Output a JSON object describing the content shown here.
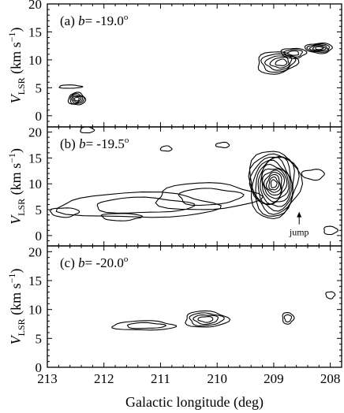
{
  "chart_data": {
    "type": "contour",
    "xlabel": "Galactic longitude (deg)",
    "x_ticks": [
      213,
      212,
      211,
      210,
      209,
      208
    ],
    "xlim": [
      213,
      207.8
    ],
    "ylabel_main": "V",
    "ylabel_sub": "LSR",
    "ylabel_unit_pre": " (km s",
    "ylabel_unit_exp": "−1",
    "ylabel_unit_post": ")",
    "panels": [
      {
        "letter": "(a) ",
        "b_symbol": "b",
        "b_value": "= -19.0",
        "b_degree": "o",
        "ylim": [
          -2,
          20
        ],
        "y_ticks": [
          0,
          5,
          10,
          15,
          20
        ],
        "clumps": [
          {
            "l": 212.48,
            "v": 3.0,
            "dl": 0.15,
            "dv": 1.1,
            "levels": 5,
            "tilt": 0
          },
          {
            "l": 212.6,
            "v": 5.2,
            "dl": 0.2,
            "dv": 0.3,
            "levels": 1,
            "tilt": 0
          },
          {
            "l": 208.95,
            "v": 9.5,
            "dl": 0.35,
            "dv": 2.0,
            "levels": 5,
            "tilt": 0.25
          },
          {
            "l": 208.65,
            "v": 11.2,
            "dl": 0.22,
            "dv": 0.9,
            "levels": 3,
            "tilt": 0
          },
          {
            "l": 208.2,
            "v": 12.1,
            "dl": 0.24,
            "dv": 0.9,
            "levels": 5,
            "tilt": 0
          }
        ]
      },
      {
        "letter": "(b) ",
        "b_symbol": "b",
        "b_value": "= -19.5",
        "b_degree": "o",
        "ylim": [
          -2,
          21
        ],
        "y_ticks": [
          0,
          5,
          10,
          15,
          20
        ],
        "annotation": "jump",
        "annotation_l": 208.55,
        "annotation_v": 4.6,
        "clumps": [
          {
            "l": 211.4,
            "v": 5.8,
            "dl": 1.4,
            "dv": 2.4,
            "levels": 2,
            "tilt": 0.35
          },
          {
            "l": 210.2,
            "v": 7.5,
            "dl": 0.9,
            "dv": 2.6,
            "levels": 2,
            "tilt": 0.3
          },
          {
            "l": 209.0,
            "v": 10.0,
            "dl": 0.45,
            "dv": 6.5,
            "levels": 13,
            "tilt": 0
          },
          {
            "l": 212.7,
            "v": 4.5,
            "dl": 0.25,
            "dv": 0.9,
            "levels": 1,
            "tilt": 0
          },
          {
            "l": 208.3,
            "v": 11.8,
            "dl": 0.2,
            "dv": 1.0,
            "levels": 1,
            "tilt": 0
          },
          {
            "l": 209.9,
            "v": 17.5,
            "dl": 0.12,
            "dv": 0.5,
            "levels": 1,
            "tilt": 0
          },
          {
            "l": 210.9,
            "v": 16.8,
            "dl": 0.1,
            "dv": 0.5,
            "levels": 1,
            "tilt": 0
          },
          {
            "l": 212.3,
            "v": 20.4,
            "dl": 0.12,
            "dv": 0.6,
            "levels": 1,
            "tilt": 0
          },
          {
            "l": 208.0,
            "v": 1.0,
            "dl": 0.12,
            "dv": 0.8,
            "levels": 1,
            "tilt": 0
          },
          {
            "l": 211.7,
            "v": 3.6,
            "dl": 0.35,
            "dv": 0.7,
            "levels": 1,
            "tilt": 0
          }
        ]
      },
      {
        "letter": "(c) ",
        "b_symbol": "b",
        "b_value": "= -20.0",
        "b_degree": "o",
        "ylim": [
          0,
          21
        ],
        "y_ticks": [
          0,
          5,
          10,
          15,
          20
        ],
        "clumps": [
          {
            "l": 211.3,
            "v": 7.2,
            "dl": 0.55,
            "dv": 0.8,
            "levels": 2,
            "tilt": 0.1
          },
          {
            "l": 210.2,
            "v": 8.3,
            "dl": 0.38,
            "dv": 1.4,
            "levels": 4,
            "tilt": 0
          },
          {
            "l": 208.75,
            "v": 8.5,
            "dl": 0.1,
            "dv": 1.0,
            "levels": 2,
            "tilt": 0
          },
          {
            "l": 208.0,
            "v": 12.5,
            "dl": 0.08,
            "dv": 0.6,
            "levels": 1,
            "tilt": 0
          }
        ]
      }
    ]
  }
}
